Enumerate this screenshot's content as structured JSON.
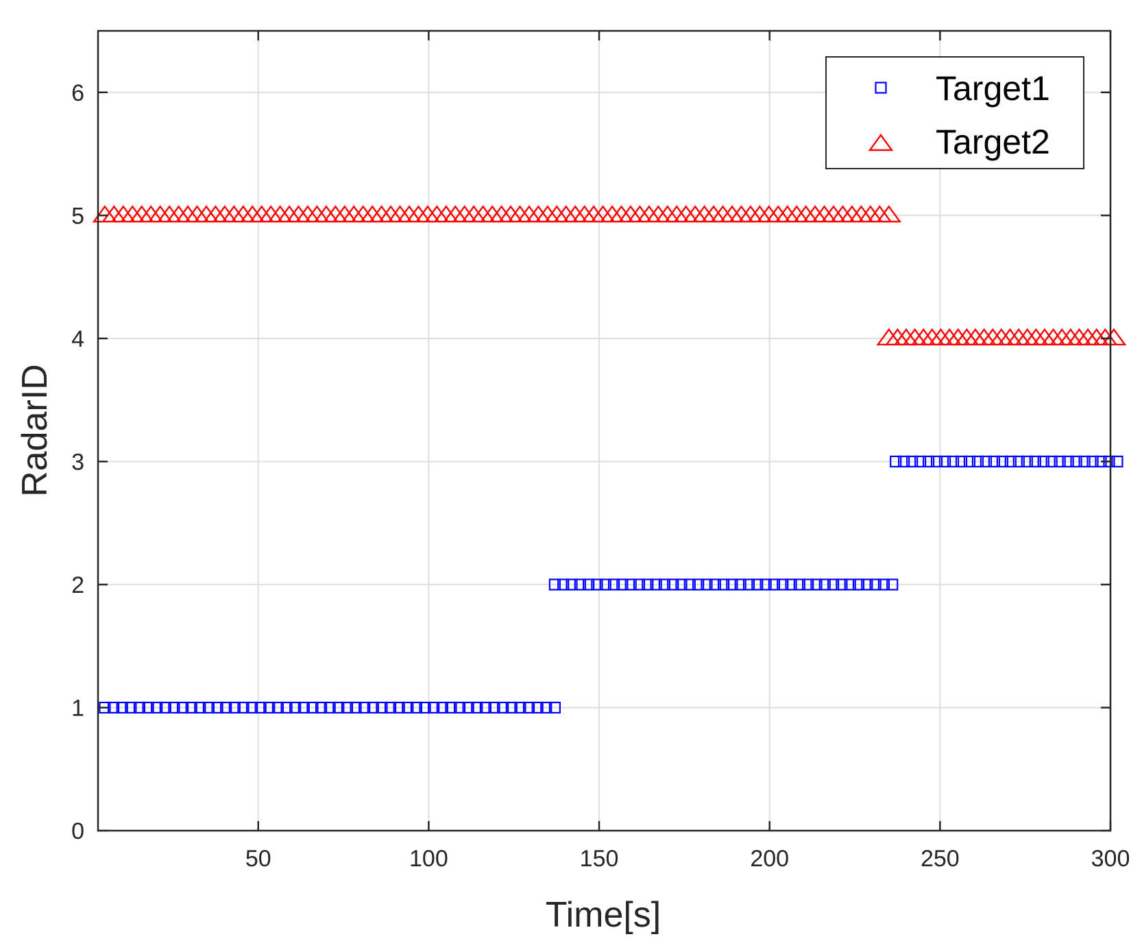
{
  "chart_data": {
    "type": "scatter",
    "title": "",
    "xlabel": "Time[s]",
    "ylabel": "RadarID",
    "xlim": [
      3,
      300
    ],
    "ylim": [
      0,
      6.5
    ],
    "xticks": [
      50,
      100,
      150,
      200,
      250,
      300
    ],
    "yticks": [
      0,
      1,
      2,
      3,
      4,
      5,
      6
    ],
    "grid": true,
    "legend_position": "top-right",
    "series": [
      {
        "name": "Target1",
        "marker": "square",
        "color": "#0000ff",
        "segments": [
          {
            "y": 1,
            "x_start": 5,
            "x_end": 137,
            "count": 53
          },
          {
            "y": 2,
            "x_start": 137,
            "x_end": 236,
            "count": 41
          },
          {
            "y": 3,
            "x_start": 237,
            "x_end": 302,
            "count": 28
          }
        ]
      },
      {
        "name": "Target2",
        "marker": "triangle",
        "color": "#ff0000",
        "segments": [
          {
            "y": 5,
            "x_start": 5,
            "x_end": 235,
            "count": 86
          },
          {
            "y": 4,
            "x_start": 235,
            "x_end": 301,
            "count": 27
          }
        ]
      }
    ]
  }
}
